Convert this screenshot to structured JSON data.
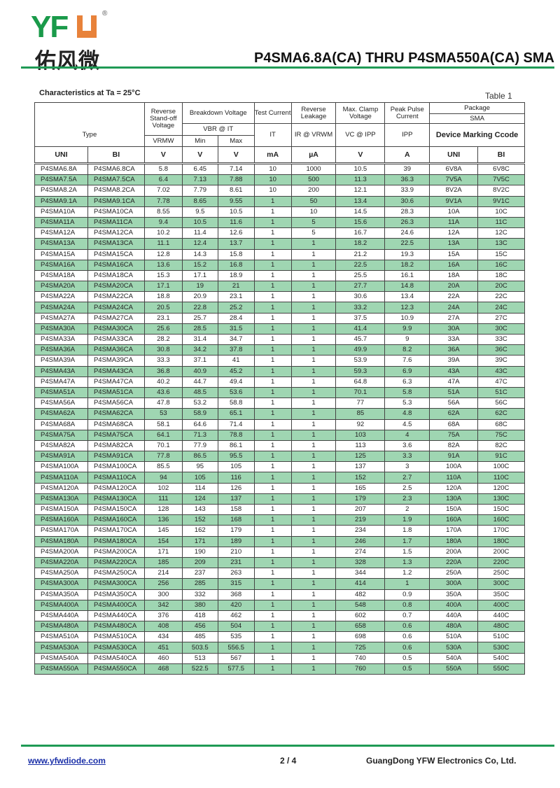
{
  "header": {
    "logo_text": "YFW",
    "logo_cn": "佑风微",
    "title": "P4SMA6.8A(CA) THRU P4SMA550A(CA)  SMA"
  },
  "caption": "Characteristics at Ta = 25°C",
  "table_label": "Table 1",
  "columns": {
    "type": "Type",
    "vrwm": "Reverse Stand-off Voltage",
    "breakdown": "Breakdown Voltage",
    "vbr": "VBR @ IT",
    "min": "Min",
    "max": "Max",
    "vrwm_sym": "VRMW",
    "test": "Test Current",
    "it": "IT",
    "leak": "Reverse Leakage",
    "ir": "IR @ VRWM",
    "clamp": "Max. Clamp Voltage",
    "vc": "VC @ IPP",
    "peak": "Peak Pulse Current",
    "ipp": "IPP",
    "package": "Package",
    "sma": "SMA",
    "marking": "Device Marking Ccode"
  },
  "units": [
    "UNI",
    "BI",
    "V",
    "V",
    "V",
    "mA",
    "µA",
    "V",
    "A",
    "UNI",
    "BI"
  ],
  "rows": [
    [
      "P4SMA6.8A",
      "P4SMA6.8CA",
      "5.8",
      "6.45",
      "7.14",
      "10",
      "1000",
      "10.5",
      "39",
      "6V8A",
      "6V8C"
    ],
    [
      "P4SMA7.5A",
      "P4SMA7.5CA",
      "6.4",
      "7.13",
      "7.88",
      "10",
      "500",
      "11.3",
      "36.3",
      "7V5A",
      "7V5C"
    ],
    [
      "P4SMA8.2A",
      "P4SMA8.2CA",
      "7.02",
      "7.79",
      "8.61",
      "10",
      "200",
      "12.1",
      "33.9",
      "8V2A",
      "8V2C"
    ],
    [
      "P4SMA9.1A",
      "P4SMA9.1CA",
      "7.78",
      "8.65",
      "9.55",
      "1",
      "50",
      "13.4",
      "30.6",
      "9V1A",
      "9V1C"
    ],
    [
      "P4SMA10A",
      "P4SMA10CA",
      "8.55",
      "9.5",
      "10.5",
      "1",
      "10",
      "14.5",
      "28.3",
      "10A",
      "10C"
    ],
    [
      "P4SMA11A",
      "P4SMA11CA",
      "9.4",
      "10.5",
      "11.6",
      "1",
      "5",
      "15.6",
      "26.3",
      "11A",
      "11C"
    ],
    [
      "P4SMA12A",
      "P4SMA12CA",
      "10.2",
      "11.4",
      "12.6",
      "1",
      "5",
      "16.7",
      "24.6",
      "12A",
      "12C"
    ],
    [
      "P4SMA13A",
      "P4SMA13CA",
      "11.1",
      "12.4",
      "13.7",
      "1",
      "1",
      "18.2",
      "22.5",
      "13A",
      "13C"
    ],
    [
      "P4SMA15A",
      "P4SMA15CA",
      "12.8",
      "14.3",
      "15.8",
      "1",
      "1",
      "21.2",
      "19.3",
      "15A",
      "15C"
    ],
    [
      "P4SMA16A",
      "P4SMA16CA",
      "13.6",
      "15.2",
      "16.8",
      "1",
      "1",
      "22.5",
      "18.2",
      "16A",
      "16C"
    ],
    [
      "P4SMA18A",
      "P4SMA18CA",
      "15.3",
      "17.1",
      "18.9",
      "1",
      "1",
      "25.5",
      "16.1",
      "18A",
      "18C"
    ],
    [
      "P4SMA20A",
      "P4SMA20CA",
      "17.1",
      "19",
      "21",
      "1",
      "1",
      "27.7",
      "14.8",
      "20A",
      "20C"
    ],
    [
      "P4SMA22A",
      "P4SMA22CA",
      "18.8",
      "20.9",
      "23.1",
      "1",
      "1",
      "30.6",
      "13.4",
      "22A",
      "22C"
    ],
    [
      "P4SMA24A",
      "P4SMA24CA",
      "20.5",
      "22.8",
      "25.2",
      "1",
      "1",
      "33.2",
      "12.3",
      "24A",
      "24C"
    ],
    [
      "P4SMA27A",
      "P4SMA27CA",
      "23.1",
      "25.7",
      "28.4",
      "1",
      "1",
      "37.5",
      "10.9",
      "27A",
      "27C"
    ],
    [
      "P4SMA30A",
      "P4SMA30CA",
      "25.6",
      "28.5",
      "31.5",
      "1",
      "1",
      "41.4",
      "9.9",
      "30A",
      "30C"
    ],
    [
      "P4SMA33A",
      "P4SMA33CA",
      "28.2",
      "31.4",
      "34.7",
      "1",
      "1",
      "45.7",
      "9",
      "33A",
      "33C"
    ],
    [
      "P4SMA36A",
      "P4SMA36CA",
      "30.8",
      "34.2",
      "37.8",
      "1",
      "1",
      "49.9",
      "8.2",
      "36A",
      "36C"
    ],
    [
      "P4SMA39A",
      "P4SMA39CA",
      "33.3",
      "37.1",
      "41",
      "1",
      "1",
      "53.9",
      "7.6",
      "39A",
      "39C"
    ],
    [
      "P4SMA43A",
      "P4SMA43CA",
      "36.8",
      "40.9",
      "45.2",
      "1",
      "1",
      "59.3",
      "6.9",
      "43A",
      "43C"
    ],
    [
      "P4SMA47A",
      "P4SMA47CA",
      "40.2",
      "44.7",
      "49.4",
      "1",
      "1",
      "64.8",
      "6.3",
      "47A",
      "47C"
    ],
    [
      "P4SMA51A",
      "P4SMA51CA",
      "43.6",
      "48.5",
      "53.6",
      "1",
      "1",
      "70.1",
      "5.8",
      "51A",
      "51C"
    ],
    [
      "P4SMA56A",
      "P4SMA56CA",
      "47.8",
      "53.2",
      "58.8",
      "1",
      "1",
      "77",
      "5.3",
      "56A",
      "56C"
    ],
    [
      "P4SMA62A",
      "P4SMA62CA",
      "53",
      "58.9",
      "65.1",
      "1",
      "1",
      "85",
      "4.8",
      "62A",
      "62C"
    ],
    [
      "P4SMA68A",
      "P4SMA68CA",
      "58.1",
      "64.6",
      "71.4",
      "1",
      "1",
      "92",
      "4.5",
      "68A",
      "68C"
    ],
    [
      "P4SMA75A",
      "P4SMA75CA",
      "64.1",
      "71.3",
      "78.8",
      "1",
      "1",
      "103",
      "4",
      "75A",
      "75C"
    ],
    [
      "P4SMA82A",
      "P4SMA82CA",
      "70.1",
      "77.9",
      "86.1",
      "1",
      "1",
      "113",
      "3.6",
      "82A",
      "82C"
    ],
    [
      "P4SMA91A",
      "P4SMA91CA",
      "77.8",
      "86.5",
      "95.5",
      "1",
      "1",
      "125",
      "3.3",
      "91A",
      "91C"
    ],
    [
      "P4SMA100A",
      "P4SMA100CA",
      "85.5",
      "95",
      "105",
      "1",
      "1",
      "137",
      "3",
      "100A",
      "100C"
    ],
    [
      "P4SMA110A",
      "P4SMA110CA",
      "94",
      "105",
      "116",
      "1",
      "1",
      "152",
      "2.7",
      "110A",
      "110C"
    ],
    [
      "P4SMA120A",
      "P4SMA120CA",
      "102",
      "114",
      "126",
      "1",
      "1",
      "165",
      "2.5",
      "120A",
      "120C"
    ],
    [
      "P4SMA130A",
      "P4SMA130CA",
      "111",
      "124",
      "137",
      "1",
      "1",
      "179",
      "2.3",
      "130A",
      "130C"
    ],
    [
      "P4SMA150A",
      "P4SMA150CA",
      "128",
      "143",
      "158",
      "1",
      "1",
      "207",
      "2",
      "150A",
      "150C"
    ],
    [
      "P4SMA160A",
      "P4SMA160CA",
      "136",
      "152",
      "168",
      "1",
      "1",
      "219",
      "1.9",
      "160A",
      "160C"
    ],
    [
      "P4SMA170A",
      "P4SMA170CA",
      "145",
      "162",
      "179",
      "1",
      "1",
      "234",
      "1.8",
      "170A",
      "170C"
    ],
    [
      "P4SMA180A",
      "P4SMA180CA",
      "154",
      "171",
      "189",
      "1",
      "1",
      "246",
      "1.7",
      "180A",
      "180C"
    ],
    [
      "P4SMA200A",
      "P4SMA200CA",
      "171",
      "190",
      "210",
      "1",
      "1",
      "274",
      "1.5",
      "200A",
      "200C"
    ],
    [
      "P4SMA220A",
      "P4SMA220CA",
      "185",
      "209",
      "231",
      "1",
      "1",
      "328",
      "1.3",
      "220A",
      "220C"
    ],
    [
      "P4SMA250A",
      "P4SMA250CA",
      "214",
      "237",
      "263",
      "1",
      "1",
      "344",
      "1.2",
      "250A",
      "250C"
    ],
    [
      "P4SMA300A",
      "P4SMA300CA",
      "256",
      "285",
      "315",
      "1",
      "1",
      "414",
      "1",
      "300A",
      "300C"
    ],
    [
      "P4SMA350A",
      "P4SMA350CA",
      "300",
      "332",
      "368",
      "1",
      "1",
      "482",
      "0.9",
      "350A",
      "350C"
    ],
    [
      "P4SMA400A",
      "P4SMA400CA",
      "342",
      "380",
      "420",
      "1",
      "1",
      "548",
      "0.8",
      "400A",
      "400C"
    ],
    [
      "P4SMA440A",
      "P4SMA440CA",
      "376",
      "418",
      "462",
      "1",
      "1",
      "602",
      "0.7",
      "440A",
      "440C"
    ],
    [
      "P4SMA480A",
      "P4SMA480CA",
      "408",
      "456",
      "504",
      "1",
      "1",
      "658",
      "0.6",
      "480A",
      "480C"
    ],
    [
      "P4SMA510A",
      "P4SMA510CA",
      "434",
      "485",
      "535",
      "1",
      "1",
      "698",
      "0.6",
      "510A",
      "510C"
    ],
    [
      "P4SMA530A",
      "P4SMA530CA",
      "451",
      "503.5",
      "556.5",
      "1",
      "1",
      "725",
      "0.6",
      "530A",
      "530C"
    ],
    [
      "P4SMA540A",
      "P4SMA540CA",
      "460",
      "513",
      "567",
      "1",
      "1",
      "740",
      "0.5",
      "540A",
      "540C"
    ],
    [
      "P4SMA550A",
      "P4SMA550CA",
      "468",
      "522.5",
      "577.5",
      "1",
      "1",
      "760",
      "0.5",
      "550A",
      "550C"
    ]
  ],
  "colors": {
    "brand_green": "#1f9a55",
    "brand_orange": "#e8823a",
    "row_highlight": "#9fd6b2"
  },
  "footer": {
    "website": "www.yfwdiode.com",
    "page": "2 / 4",
    "company": "GuangDong YFW Electronics Co, Ltd."
  }
}
